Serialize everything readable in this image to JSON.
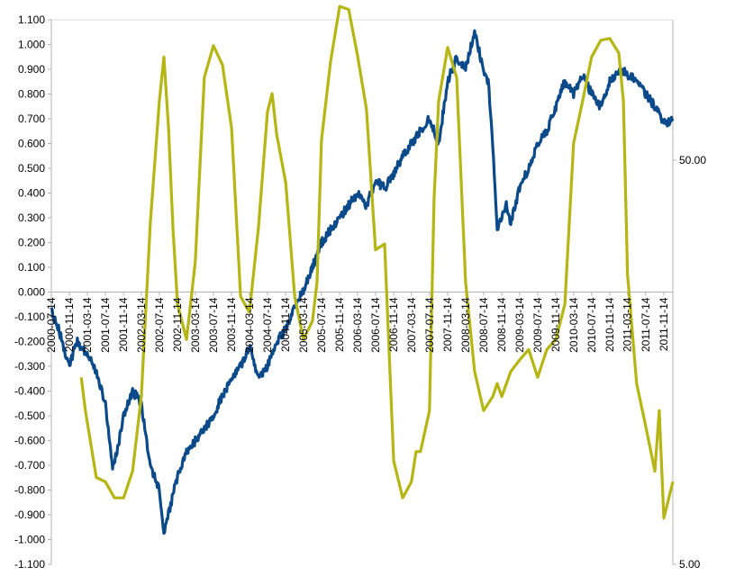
{
  "chart_data": {
    "type": "line",
    "title": "",
    "xlabel": "",
    "ylabel": "",
    "y_left": {
      "range": [
        -1.1,
        1.1
      ],
      "ticks": [
        "1.100",
        "1.000",
        "0.900",
        "0.800",
        "0.700",
        "0.600",
        "0.500",
        "0.400",
        "0.300",
        "0.200",
        "0.100",
        "0.000",
        "-0.100",
        "-0.200",
        "-0.300",
        "-0.400",
        "-0.500",
        "-0.600",
        "-0.700",
        "-0.800",
        "-0.900",
        "-1.000",
        "-1.100"
      ]
    },
    "y_right": {
      "scale": "log",
      "range": [
        5,
        111.2
      ],
      "ticks": [
        "50.00",
        "5.00"
      ]
    },
    "x_ticks": [
      "2000-07-14",
      "2000-11-14",
      "2001-03-14",
      "2001-07-14",
      "2001-11-14",
      "2002-03-14",
      "2002-07-14",
      "2002-11-14",
      "2003-03-14",
      "2003-07-14",
      "2003-11-14",
      "2004-03-14",
      "2004-07-14",
      "2004-11-14",
      "2005-03-14",
      "2005-07-14",
      "2005-11-14",
      "2006-03-14",
      "2006-07-14",
      "2006-11-14",
      "2007-03-14",
      "2007-07-14",
      "2007-11-14",
      "2008-03-14",
      "2008-07-14",
      "2008-11-14",
      "2009-03-14",
      "2009-07-14",
      "2009-11-14",
      "2010-03-14",
      "2010-07-14",
      "2010-11-14",
      "2011-03-14",
      "2011-07-14",
      "2011-11-14"
    ],
    "grid": false,
    "legend": "none",
    "series": [
      {
        "axis": "left",
        "color": "#0b4a8a",
        "x": [
          "2000-07-14",
          "2000-09-01",
          "2000-11-14",
          "2001-01-01",
          "2001-03-14",
          "2001-05-01",
          "2001-07-14",
          "2001-09-01",
          "2001-10-01",
          "2001-11-14",
          "2002-01-14",
          "2002-03-14",
          "2002-05-14",
          "2002-07-14",
          "2002-08-14",
          "2002-09-14",
          "2002-10-14",
          "2002-11-14",
          "2002-12-14",
          "2003-01-14",
          "2003-03-14",
          "2003-05-14",
          "2003-07-14",
          "2003-09-14",
          "2003-11-14",
          "2004-01-14",
          "2004-03-14",
          "2004-05-14",
          "2004-07-14",
          "2004-08-14",
          "2004-09-14",
          "2004-11-14",
          "2005-01-14",
          "2005-03-14",
          "2005-05-14",
          "2005-07-14",
          "2005-09-14",
          "2005-11-14",
          "2006-01-14",
          "2006-03-14",
          "2006-05-14",
          "2006-07-14",
          "2006-09-14",
          "2006-11-14",
          "2007-01-14",
          "2007-03-14",
          "2007-05-14",
          "2007-07-14",
          "2007-09-14",
          "2007-11-14",
          "2008-01-14",
          "2008-03-14",
          "2008-04-14",
          "2008-05-14",
          "2008-06-14",
          "2008-07-14",
          "2008-08-14",
          "2008-09-14",
          "2008-10-14",
          "2008-11-14",
          "2008-12-14",
          "2009-01-14",
          "2009-03-14",
          "2009-05-14",
          "2009-07-14",
          "2009-09-14",
          "2009-11-14",
          "2010-01-14",
          "2010-03-14",
          "2010-05-14",
          "2010-07-14",
          "2010-09-14",
          "2010-11-14",
          "2011-01-14",
          "2011-03-14",
          "2011-05-14",
          "2011-07-14",
          "2011-09-14",
          "2011-11-14",
          "2012-01-14"
        ],
        "y": [
          -0.08,
          -0.15,
          -0.3,
          -0.2,
          -0.25,
          -0.3,
          -0.45,
          -0.7,
          -0.65,
          -0.5,
          -0.4,
          -0.45,
          -0.7,
          -0.8,
          -0.98,
          -0.9,
          -0.82,
          -0.75,
          -0.7,
          -0.65,
          -0.6,
          -0.55,
          -0.5,
          -0.42,
          -0.35,
          -0.3,
          -0.22,
          -0.35,
          -0.3,
          -0.25,
          -0.2,
          -0.15,
          -0.05,
          0.0,
          0.1,
          0.2,
          0.25,
          0.3,
          0.35,
          0.4,
          0.35,
          0.45,
          0.42,
          0.48,
          0.55,
          0.6,
          0.65,
          0.7,
          0.6,
          0.85,
          0.95,
          0.9,
          0.98,
          1.05,
          0.97,
          0.9,
          0.85,
          0.6,
          0.25,
          0.3,
          0.35,
          0.28,
          0.42,
          0.5,
          0.6,
          0.65,
          0.75,
          0.85,
          0.8,
          0.88,
          0.8,
          0.75,
          0.85,
          0.9,
          0.88,
          0.85,
          0.8,
          0.75,
          0.68,
          0.7
        ]
      },
      {
        "axis": "right",
        "color": "#b5b514",
        "x": [
          "2001-02-01",
          "2001-03-01",
          "2001-05-14",
          "2001-07-14",
          "2001-09-14",
          "2001-11-14",
          "2002-01-14",
          "2002-03-14",
          "2002-05-14",
          "2002-07-14",
          "2002-08-14",
          "2002-09-14",
          "2002-10-14",
          "2002-11-14",
          "2003-01-14",
          "2003-03-14",
          "2003-05-14",
          "2003-07-14",
          "2003-09-14",
          "2003-11-14",
          "2004-01-14",
          "2004-03-14",
          "2004-05-14",
          "2004-07-14",
          "2004-08-14",
          "2004-09-14",
          "2004-11-14",
          "2005-01-14",
          "2005-03-14",
          "2005-05-14",
          "2005-06-14",
          "2005-07-14",
          "2005-09-14",
          "2005-11-14",
          "2006-01-14",
          "2006-03-14",
          "2006-05-14",
          "2006-07-14",
          "2006-09-14",
          "2006-11-14",
          "2007-01-14",
          "2007-03-14",
          "2007-04-14",
          "2007-05-14",
          "2007-07-14",
          "2007-08-14",
          "2007-09-14",
          "2007-11-14",
          "2008-01-14",
          "2008-03-14",
          "2008-05-14",
          "2008-07-14",
          "2008-09-14",
          "2008-10-14",
          "2008-11-14",
          "2009-01-14",
          "2009-03-14",
          "2009-05-14",
          "2009-07-14",
          "2009-09-14",
          "2009-11-14",
          "2010-01-14",
          "2010-03-14",
          "2010-05-14",
          "2010-07-14",
          "2010-09-14",
          "2010-11-14",
          "2011-01-14",
          "2011-02-14",
          "2011-03-14",
          "2011-05-14",
          "2011-07-14",
          "2011-09-14",
          "2011-10-14",
          "2011-11-14",
          "2012-01-14"
        ],
        "y": [
          14.5,
          12.0,
          8.2,
          8.0,
          7.3,
          7.3,
          8.5,
          13.0,
          35.0,
          70.0,
          90.0,
          60.0,
          34.0,
          22.0,
          18.0,
          28.0,
          80.0,
          96.0,
          86.0,
          60.0,
          23.0,
          21.0,
          34.0,
          66.0,
          73.0,
          58.0,
          44.0,
          23.0,
          18.0,
          20.0,
          25.0,
          56.0,
          88.0,
          120.0,
          118.0,
          91.0,
          67.0,
          30.0,
          31.0,
          9.0,
          7.3,
          8.0,
          9.5,
          9.5,
          12.0,
          40.0,
          70.0,
          95.0,
          80.0,
          25.0,
          15.0,
          12.0,
          13.0,
          14.0,
          13.0,
          15.0,
          16.0,
          17.0,
          14.5,
          17.0,
          18.0,
          22.0,
          55.0,
          70.0,
          90.0,
          99.0,
          100.0,
          92.0,
          70.0,
          26.0,
          14.0,
          11.0,
          8.5,
          12.0,
          6.5,
          8.0
        ]
      }
    ]
  }
}
